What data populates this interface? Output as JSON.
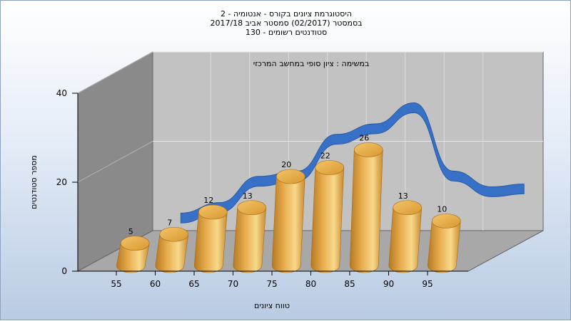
{
  "title_lines": [
    "היסטוגרמת ציונים בקורס - אנטומיה - 2",
    "בסמסטר  (02/2017)  סמסטר אביב 2017/18",
    "סטודנטים רשומים - 130"
  ],
  "chart_data": {
    "type": "bar",
    "annotation": "במשימה : ציון סופי במחשב המרכזי",
    "categories": [
      "55",
      "60",
      "65",
      "70",
      "75",
      "80",
      "85",
      "90",
      "95"
    ],
    "bar_categories": [
      "55-60",
      "60-65",
      "65-70",
      "70-75",
      "75-80",
      "80-85",
      "85-90",
      "90-95",
      "95-100"
    ],
    "values": [
      5,
      7,
      12,
      13,
      20,
      22,
      26,
      13,
      10
    ],
    "xlabel": "טווח ציונים",
    "ylabel": "מספר סטודנטים",
    "ylim": [
      0,
      40
    ],
    "yticks": [
      0,
      20,
      40
    ],
    "grid": true,
    "bar_style": "3d-cylinder",
    "curve_style": "3d-ribbon"
  },
  "colors": {
    "bar_light": "#f8d98a",
    "bar_mid": "#e6ab4c",
    "bar_dark": "#b57822",
    "ribbon": "#2f6cc8",
    "wall_back": "#c2c2c2",
    "wall_left": "#888888",
    "floor": "#a9a9a9"
  }
}
